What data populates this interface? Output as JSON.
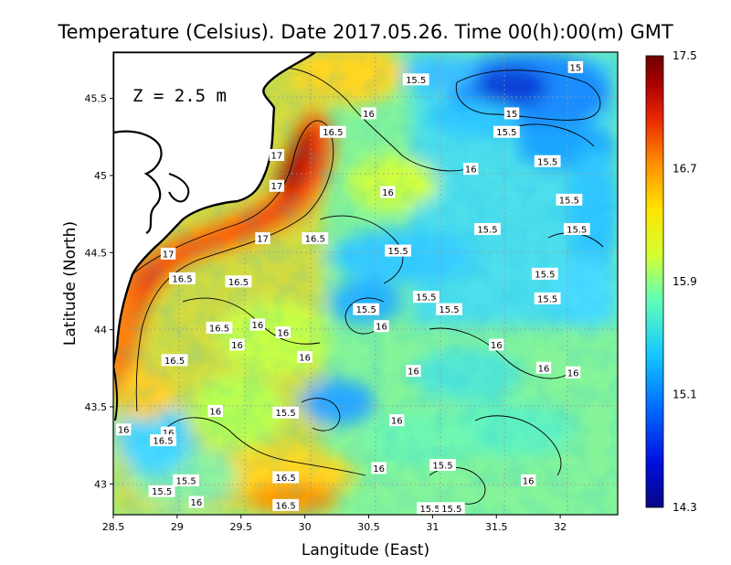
{
  "title": "Temperature (Celsius). Date 2017.05.26. Time 00(h):00(m)  GMT",
  "depth_label": "Z = 2.5 m",
  "xlabel": "Langitude (East)",
  "ylabel": "Latitude (North)",
  "x_ticks": [
    "28.5",
    "29",
    "29.5",
    "30",
    "30.5",
    "31",
    "31.5",
    "32"
  ],
  "y_ticks": [
    "43",
    "43.5",
    "44",
    "44.5",
    "45",
    "45.5"
  ],
  "colorbar": {
    "min": 14.3,
    "max": 17.5,
    "tick_labels": [
      "17.5",
      "16.7",
      "15.9",
      "15.1",
      "14.3"
    ]
  },
  "map_data": {
    "lon_range": [
      28.5,
      32.45
    ],
    "lat_range": [
      42.8,
      45.8
    ],
    "contour_labels": [
      {
        "text": "15",
        "lon": 32.12,
        "lat": 45.7
      },
      {
        "text": "15.5",
        "lon": 30.87,
        "lat": 45.62
      },
      {
        "text": "16",
        "lon": 30.5,
        "lat": 45.4
      },
      {
        "text": "15",
        "lon": 31.62,
        "lat": 45.4
      },
      {
        "text": "16.5",
        "lon": 30.22,
        "lat": 45.28
      },
      {
        "text": "15.5",
        "lon": 31.58,
        "lat": 45.28
      },
      {
        "text": "17",
        "lon": 29.78,
        "lat": 45.13
      },
      {
        "text": "15.5",
        "lon": 31.9,
        "lat": 45.09
      },
      {
        "text": "16",
        "lon": 31.3,
        "lat": 45.04
      },
      {
        "text": "17",
        "lon": 29.78,
        "lat": 44.93
      },
      {
        "text": "16",
        "lon": 30.65,
        "lat": 44.89
      },
      {
        "text": "15.5",
        "lon": 32.07,
        "lat": 44.84
      },
      {
        "text": "15.5",
        "lon": 31.43,
        "lat": 44.65
      },
      {
        "text": "15.5",
        "lon": 32.13,
        "lat": 44.65
      },
      {
        "text": "17",
        "lon": 29.67,
        "lat": 44.59
      },
      {
        "text": "16.5",
        "lon": 30.08,
        "lat": 44.59
      },
      {
        "text": "15.5",
        "lon": 30.73,
        "lat": 44.51
      },
      {
        "text": "17",
        "lon": 28.93,
        "lat": 44.49
      },
      {
        "text": "15.5",
        "lon": 31.88,
        "lat": 44.36
      },
      {
        "text": "16.5",
        "lon": 29.04,
        "lat": 44.33
      },
      {
        "text": "16.5",
        "lon": 29.48,
        "lat": 44.31
      },
      {
        "text": "15.5",
        "lon": 31.9,
        "lat": 44.2
      },
      {
        "text": "15.5",
        "lon": 30.95,
        "lat": 44.21
      },
      {
        "text": "15.5",
        "lon": 30.48,
        "lat": 44.13
      },
      {
        "text": "15.5",
        "lon": 31.13,
        "lat": 44.13
      },
      {
        "text": "16",
        "lon": 30.6,
        "lat": 44.02
      },
      {
        "text": "16",
        "lon": 29.63,
        "lat": 44.03
      },
      {
        "text": "16.5",
        "lon": 29.33,
        "lat": 44.01
      },
      {
        "text": "16",
        "lon": 29.83,
        "lat": 43.98
      },
      {
        "text": "16",
        "lon": 29.47,
        "lat": 43.9
      },
      {
        "text": "16",
        "lon": 31.5,
        "lat": 43.9
      },
      {
        "text": "16.5",
        "lon": 28.98,
        "lat": 43.8
      },
      {
        "text": "16",
        "lon": 30.0,
        "lat": 43.82
      },
      {
        "text": "16",
        "lon": 31.87,
        "lat": 43.75
      },
      {
        "text": "16",
        "lon": 32.1,
        "lat": 43.72
      },
      {
        "text": "16",
        "lon": 30.85,
        "lat": 43.73
      },
      {
        "text": "16",
        "lon": 29.3,
        "lat": 43.47
      },
      {
        "text": "15.5",
        "lon": 29.85,
        "lat": 43.46
      },
      {
        "text": "16",
        "lon": 30.72,
        "lat": 43.41
      },
      {
        "text": "16",
        "lon": 28.58,
        "lat": 43.35
      },
      {
        "text": "16",
        "lon": 28.93,
        "lat": 43.33
      },
      {
        "text": "16.5",
        "lon": 28.89,
        "lat": 43.28
      },
      {
        "text": "16.5",
        "lon": 29.85,
        "lat": 43.04
      },
      {
        "text": "15.5",
        "lon": 31.08,
        "lat": 43.12
      },
      {
        "text": "16",
        "lon": 30.58,
        "lat": 43.1
      },
      {
        "text": "16",
        "lon": 31.75,
        "lat": 43.02
      },
      {
        "text": "15.5",
        "lon": 29.07,
        "lat": 43.02
      },
      {
        "text": "15.5",
        "lon": 28.88,
        "lat": 42.95
      },
      {
        "text": "16",
        "lon": 29.15,
        "lat": 42.88
      },
      {
        "text": "16.5",
        "lon": 29.85,
        "lat": 42.86
      },
      {
        "text": "15.5",
        "lon": 30.98,
        "lat": 42.84
      },
      {
        "text": "15.5",
        "lon": 31.15,
        "lat": 42.84
      }
    ]
  },
  "colors": {
    "land": "#ffffff",
    "coast": "#000000",
    "grid": "#9a9a9a",
    "scale": [
      "#060686",
      "#0010e0",
      "#006cff",
      "#16c8ff",
      "#62ffb8",
      "#d4ff30",
      "#ffe400",
      "#ff9000",
      "#ea2800",
      "#a80000",
      "#6e0000"
    ]
  }
}
